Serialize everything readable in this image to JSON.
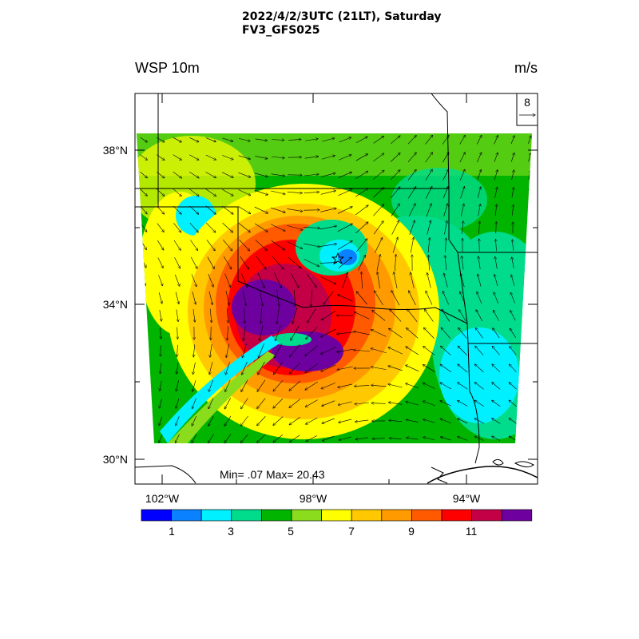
{
  "header": {
    "title_line1": "2022/4/2/3UTC (21LT), Saturday",
    "title_line2": "FV3_GFS025",
    "left_label": "WSP 10m",
    "right_label": "m/s"
  },
  "map": {
    "lat_labels": [
      "38°N",
      "34°N",
      "30°N"
    ],
    "lon_labels": [
      "102°W",
      "98°W",
      "94°W"
    ],
    "stats_text": "Min= .07 Max= 20.43",
    "ref_vector_label": "8",
    "center_marker": "star"
  },
  "colorbar": {
    "colors": [
      "#0000ff",
      "#0a82ff",
      "#00f0ff",
      "#00dc8c",
      "#00b400",
      "#8cdc1e",
      "#ffff00",
      "#ffc800",
      "#ff9b00",
      "#ff5a00",
      "#ff0000",
      "#c30046",
      "#6e00a0"
    ],
    "tick_labels": [
      "1",
      "3",
      "5",
      "7",
      "9",
      "11"
    ]
  }
}
